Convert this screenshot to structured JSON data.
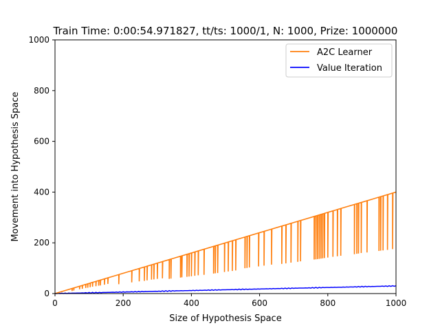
{
  "chart_data": {
    "type": "line",
    "title": "Train Time: 0:00:54.971827, tt/ts: 1000/1, N: 1000, Prize: 1000000",
    "xlabel": "Size of Hypothesis Space",
    "ylabel": "Movement into Hypothesis Space",
    "xlim": [
      0,
      1000
    ],
    "ylim": [
      0,
      1000
    ],
    "x_ticks": [
      0,
      200,
      400,
      600,
      800,
      1000
    ],
    "y_ticks": [
      0,
      200,
      400,
      600,
      800,
      1000
    ],
    "grid": false,
    "legend_position": "top-right",
    "series": [
      {
        "name": "A2C Learner",
        "color": "#ff7f0e",
        "form": "linear with downward spikes",
        "x_range": [
          0,
          1000
        ],
        "y_range": [
          0,
          400
        ],
        "spikes": [
          {
            "x": 50,
            "y": 10
          },
          {
            "x": 55,
            "y": 12
          },
          {
            "x": 72,
            "y": 17
          },
          {
            "x": 80,
            "y": 19
          },
          {
            "x": 90,
            "y": 22
          },
          {
            "x": 96,
            "y": 23
          },
          {
            "x": 103,
            "y": 25
          },
          {
            "x": 110,
            "y": 27
          },
          {
            "x": 120,
            "y": 29
          },
          {
            "x": 128,
            "y": 31
          },
          {
            "x": 133,
            "y": 32
          },
          {
            "x": 145,
            "y": 35
          },
          {
            "x": 155,
            "y": 38
          },
          {
            "x": 187,
            "y": 37
          },
          {
            "x": 225,
            "y": 44
          },
          {
            "x": 247,
            "y": 48
          },
          {
            "x": 262,
            "y": 50
          },
          {
            "x": 270,
            "y": 52
          },
          {
            "x": 283,
            "y": 55
          },
          {
            "x": 290,
            "y": 56
          },
          {
            "x": 300,
            "y": 58
          },
          {
            "x": 315,
            "y": 60
          },
          {
            "x": 335,
            "y": 58
          },
          {
            "x": 340,
            "y": 59
          },
          {
            "x": 368,
            "y": 63
          },
          {
            "x": 372,
            "y": 64
          },
          {
            "x": 387,
            "y": 66
          },
          {
            "x": 393,
            "y": 67
          },
          {
            "x": 400,
            "y": 68
          },
          {
            "x": 410,
            "y": 70
          },
          {
            "x": 420,
            "y": 72
          },
          {
            "x": 437,
            "y": 74
          },
          {
            "x": 465,
            "y": 79
          },
          {
            "x": 470,
            "y": 80
          },
          {
            "x": 477,
            "y": 81
          },
          {
            "x": 497,
            "y": 85
          },
          {
            "x": 508,
            "y": 87
          },
          {
            "x": 520,
            "y": 89
          },
          {
            "x": 530,
            "y": 91
          },
          {
            "x": 557,
            "y": 100
          },
          {
            "x": 563,
            "y": 101
          },
          {
            "x": 570,
            "y": 103
          },
          {
            "x": 597,
            "y": 107
          },
          {
            "x": 613,
            "y": 110
          },
          {
            "x": 635,
            "y": 114
          },
          {
            "x": 665,
            "y": 117
          },
          {
            "x": 677,
            "y": 119
          },
          {
            "x": 692,
            "y": 122
          },
          {
            "x": 712,
            "y": 125
          },
          {
            "x": 720,
            "y": 127
          },
          {
            "x": 760,
            "y": 134
          },
          {
            "x": 765,
            "y": 135
          },
          {
            "x": 770,
            "y": 136
          },
          {
            "x": 775,
            "y": 137
          },
          {
            "x": 780,
            "y": 138
          },
          {
            "x": 785,
            "y": 139
          },
          {
            "x": 790,
            "y": 140
          },
          {
            "x": 800,
            "y": 142
          },
          {
            "x": 815,
            "y": 145
          },
          {
            "x": 828,
            "y": 147
          },
          {
            "x": 838,
            "y": 149
          },
          {
            "x": 878,
            "y": 155
          },
          {
            "x": 885,
            "y": 157
          },
          {
            "x": 890,
            "y": 158
          },
          {
            "x": 898,
            "y": 160
          },
          {
            "x": 915,
            "y": 162
          },
          {
            "x": 950,
            "y": 168
          },
          {
            "x": 955,
            "y": 169
          },
          {
            "x": 962,
            "y": 170
          },
          {
            "x": 975,
            "y": 172
          },
          {
            "x": 990,
            "y": 175
          }
        ]
      },
      {
        "name": "Value Iteration",
        "color": "#0000ff",
        "form": "slow increase with small noise",
        "x_range": [
          0,
          1000
        ],
        "y_range": [
          0,
          30
        ]
      }
    ]
  }
}
